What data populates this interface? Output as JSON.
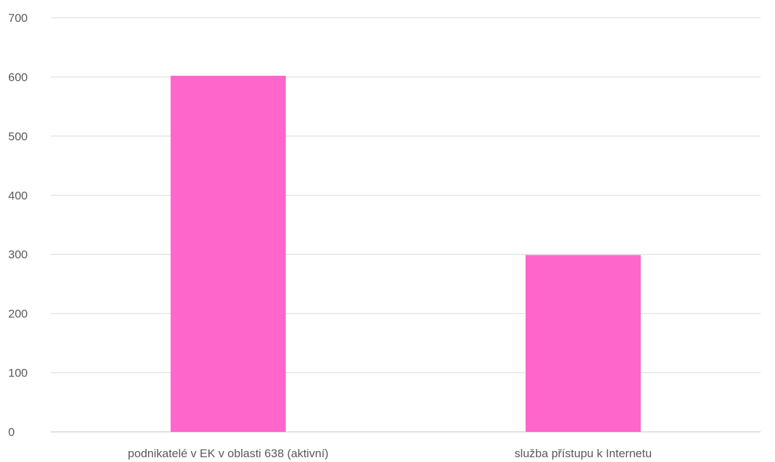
{
  "chart_data": {
    "type": "bar",
    "categories": [
      "podnikatelé v EK v oblasti 638 (aktivní)",
      "služba přístupu k Internetu"
    ],
    "series": [
      {
        "values": [
          602,
          299
        ]
      }
    ],
    "ylim": [
      0,
      700
    ],
    "yticks": [
      0,
      100,
      200,
      300,
      400,
      500,
      600,
      700
    ],
    "grid": true,
    "colors": {
      "bar": "#ff66cc"
    }
  }
}
